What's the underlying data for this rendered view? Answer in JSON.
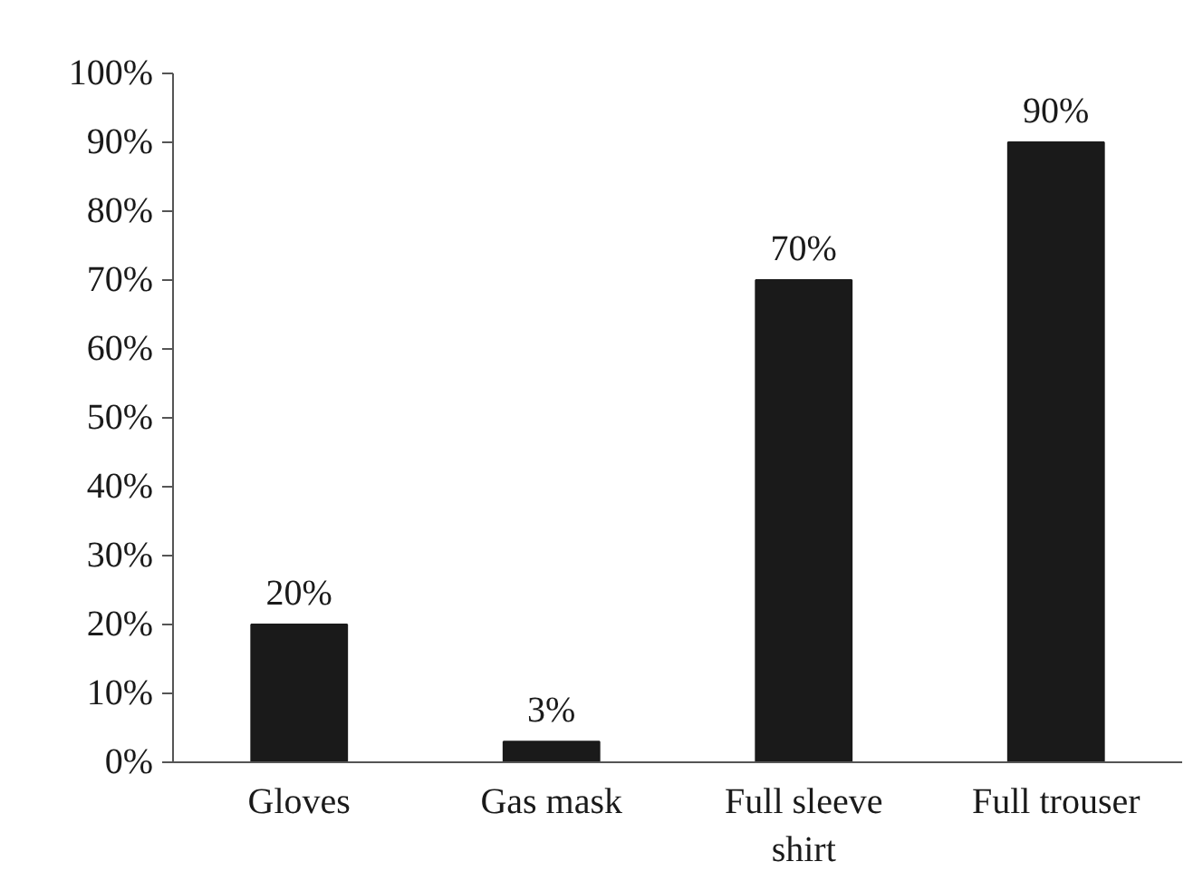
{
  "chart_data": {
    "type": "bar",
    "categories": [
      "Gloves",
      "Gas mask",
      "Full sleeve shirt",
      "Full trouser"
    ],
    "values": [
      20,
      3,
      70,
      90
    ],
    "color": "#1a1a1a",
    "value_labels": [
      "20%",
      "3%",
      "70%",
      "90%"
    ],
    "ylim": [
      0,
      100
    ],
    "yticks": [
      {
        "value": 0,
        "label": "0%"
      },
      {
        "value": 10,
        "label": "10%"
      },
      {
        "value": 20,
        "label": "20%"
      },
      {
        "value": 30,
        "label": "30%"
      },
      {
        "value": 40,
        "label": "40%"
      },
      {
        "value": 50,
        "label": "50%"
      },
      {
        "value": 60,
        "label": "60%"
      },
      {
        "value": 70,
        "label": "70%"
      },
      {
        "value": 80,
        "label": "80%"
      },
      {
        "value": 90,
        "label": "90%"
      },
      {
        "value": 100,
        "label": "100%"
      }
    ],
    "grid": false
  }
}
